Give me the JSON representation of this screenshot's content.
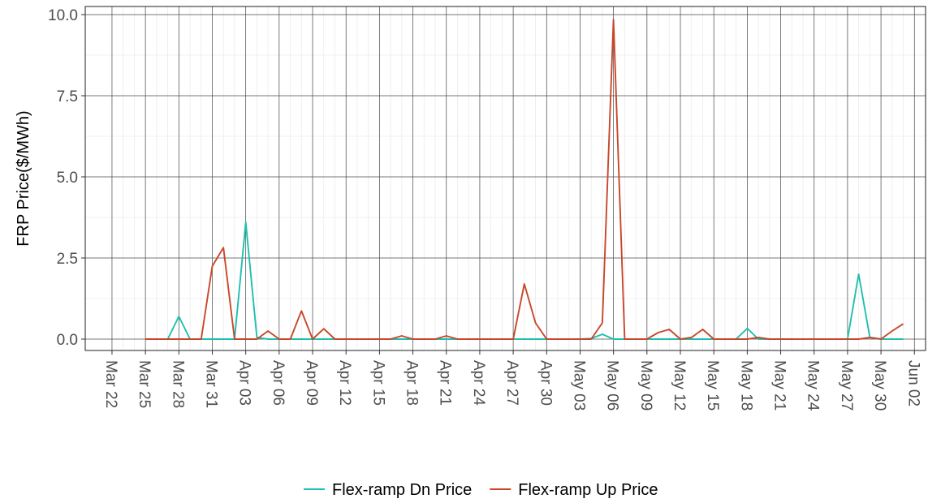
{
  "chart_data": {
    "type": "line",
    "ylabel": "FRP Price($/MWh)",
    "xlabel": "",
    "ylim": [
      -0.35,
      10.25
    ],
    "xlim": [
      "2021-03-22",
      "2021-06-02"
    ],
    "y_ticks": [
      0.0,
      2.5,
      5.0,
      7.5,
      10.0
    ],
    "y_tick_labels": [
      "0.0",
      "2.5",
      "5.0",
      "7.5",
      "10.0"
    ],
    "x_ticks": [
      "2021-03-22",
      "2021-03-25",
      "2021-03-28",
      "2021-03-31",
      "2021-04-03",
      "2021-04-06",
      "2021-04-09",
      "2021-04-12",
      "2021-04-15",
      "2021-04-18",
      "2021-04-21",
      "2021-04-24",
      "2021-04-27",
      "2021-04-30",
      "2021-05-03",
      "2021-05-06",
      "2021-05-09",
      "2021-05-12",
      "2021-05-15",
      "2021-05-18",
      "2021-05-21",
      "2021-05-24",
      "2021-05-27",
      "2021-05-30",
      "2021-06-02"
    ],
    "x_tick_labels": [
      "Mar 22",
      "Mar 25",
      "Mar 28",
      "Mar 31",
      "Apr 03",
      "Apr 06",
      "Apr 09",
      "Apr 12",
      "Apr 15",
      "Apr 18",
      "Apr 21",
      "Apr 24",
      "Apr 27",
      "Apr 30",
      "May 03",
      "May 06",
      "May 09",
      "May 12",
      "May 15",
      "May 18",
      "May 21",
      "May 24",
      "May 27",
      "May 30",
      "Jun 02"
    ],
    "grid": true,
    "legend_position": "bottom",
    "series": [
      {
        "name": "Flex-ramp Dn Price",
        "color": "#1fbfb0",
        "points": [
          [
            "2021-03-25",
            0
          ],
          [
            "2021-03-27",
            0
          ],
          [
            "2021-03-28",
            0.7
          ],
          [
            "2021-03-29",
            0
          ],
          [
            "2021-03-31",
            0
          ],
          [
            "2021-04-02",
            0
          ],
          [
            "2021-04-03",
            3.6
          ],
          [
            "2021-04-04",
            0.05
          ],
          [
            "2021-04-05",
            0
          ],
          [
            "2021-04-10",
            0
          ],
          [
            "2021-04-16",
            0
          ],
          [
            "2021-04-21",
            0
          ],
          [
            "2021-04-27",
            0
          ],
          [
            "2021-05-03",
            0
          ],
          [
            "2021-05-04",
            0.02
          ],
          [
            "2021-05-05",
            0.15
          ],
          [
            "2021-05-06",
            0
          ],
          [
            "2021-05-09",
            0
          ],
          [
            "2021-05-12",
            0
          ],
          [
            "2021-05-17",
            0
          ],
          [
            "2021-05-18",
            0.33
          ],
          [
            "2021-05-19",
            0
          ],
          [
            "2021-05-22",
            0
          ],
          [
            "2021-05-27",
            0
          ],
          [
            "2021-05-28",
            2.0
          ],
          [
            "2021-05-29",
            0.05
          ],
          [
            "2021-05-30",
            0
          ],
          [
            "2021-06-01",
            0
          ]
        ]
      },
      {
        "name": "Flex-ramp Up Price",
        "color": "#c8472b",
        "points": [
          [
            "2021-03-25",
            0
          ],
          [
            "2021-03-29",
            0
          ],
          [
            "2021-03-30",
            0
          ],
          [
            "2021-03-31",
            2.25
          ],
          [
            "2021-04-01",
            2.82
          ],
          [
            "2021-04-02",
            0
          ],
          [
            "2021-04-03",
            0
          ],
          [
            "2021-04-04",
            0
          ],
          [
            "2021-04-05",
            0.25
          ],
          [
            "2021-04-06",
            0
          ],
          [
            "2021-04-07",
            0
          ],
          [
            "2021-04-08",
            0.87
          ],
          [
            "2021-04-09",
            0
          ],
          [
            "2021-04-10",
            0.32
          ],
          [
            "2021-04-11",
            0
          ],
          [
            "2021-04-16",
            0
          ],
          [
            "2021-04-17",
            0.1
          ],
          [
            "2021-04-18",
            0
          ],
          [
            "2021-04-20",
            0
          ],
          [
            "2021-04-21",
            0.1
          ],
          [
            "2021-04-22",
            0
          ],
          [
            "2021-04-27",
            0
          ],
          [
            "2021-04-28",
            1.7
          ],
          [
            "2021-04-29",
            0.5
          ],
          [
            "2021-04-30",
            0
          ],
          [
            "2021-05-04",
            0
          ],
          [
            "2021-05-05",
            0.5
          ],
          [
            "2021-05-06",
            9.85
          ],
          [
            "2021-05-07",
            0
          ],
          [
            "2021-05-08",
            0
          ],
          [
            "2021-05-09",
            0
          ],
          [
            "2021-05-10",
            0.2
          ],
          [
            "2021-05-11",
            0.3
          ],
          [
            "2021-05-12",
            0
          ],
          [
            "2021-05-13",
            0.05
          ],
          [
            "2021-05-14",
            0.3
          ],
          [
            "2021-05-15",
            0
          ],
          [
            "2021-05-18",
            0
          ],
          [
            "2021-05-19",
            0.05
          ],
          [
            "2021-05-20",
            0
          ],
          [
            "2021-05-28",
            0
          ],
          [
            "2021-05-29",
            0.05
          ],
          [
            "2021-05-30",
            0
          ],
          [
            "2021-05-31",
            0.25
          ],
          [
            "2021-06-01",
            0.47
          ]
        ]
      }
    ]
  }
}
